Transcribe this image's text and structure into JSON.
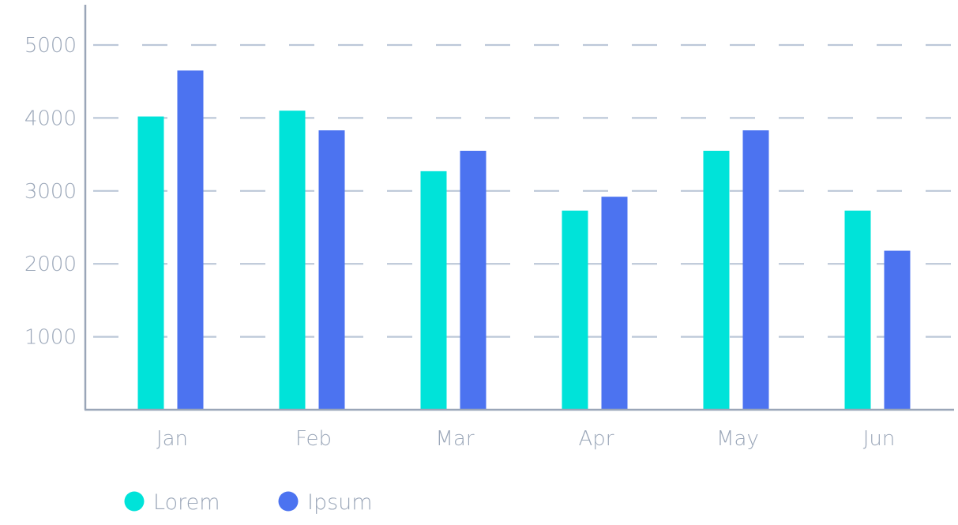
{
  "chart_data": {
    "type": "bar",
    "categories": [
      "Jan",
      "Feb",
      "Mar",
      "Apr",
      "May",
      "Jun"
    ],
    "series": [
      {
        "name": "Lorem",
        "color": "#00e3d9",
        "values": [
          4020,
          4100,
          3270,
          2730,
          3550,
          2730
        ]
      },
      {
        "name": "Ipsum",
        "color": "#4c73f0",
        "values": [
          4650,
          3830,
          3550,
          2920,
          3830,
          2180
        ]
      }
    ],
    "title": "",
    "xlabel": "",
    "ylabel": "",
    "ylim": [
      0,
      5000
    ],
    "yticks": [
      1000,
      2000,
      3000,
      4000,
      5000
    ],
    "ytick_labels": [
      "1000",
      "2000",
      "3000",
      "4000",
      "5000"
    ],
    "grid": true,
    "grid_style": "dashed",
    "grid_color": "#bcc8d8",
    "axis_color": "#9aa6b8",
    "text_color": "#9aa6b8",
    "legend_position": "bottom-left"
  }
}
